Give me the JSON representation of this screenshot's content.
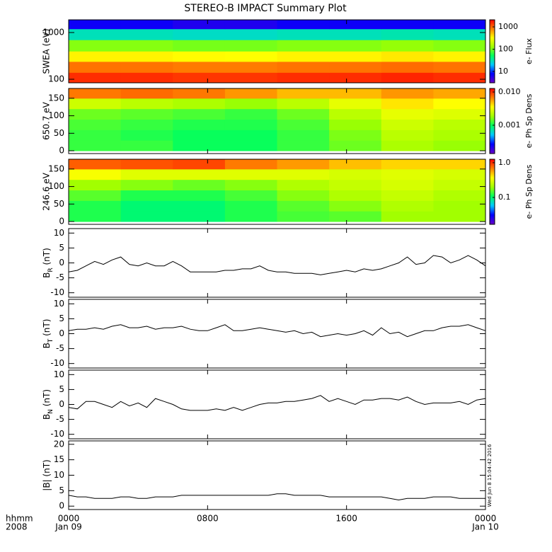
{
  "title": "STEREO-B IMPACT Summary Plot",
  "timestamp": "Wed Jun  8 15:04:42 2016",
  "colormap": [
    "#6a00c8",
    "#0000ff",
    "#00c8ff",
    "#00ff60",
    "#a0ff00",
    "#ffff00",
    "#ff8000",
    "#ff0000"
  ],
  "chart_data": [
    {
      "type": "heatmap",
      "ylabel": "SWEA (eV)",
      "colorbar_label": "e- Flux",
      "log_y": true,
      "xlim": [
        0,
        24
      ],
      "xticks": [
        0,
        8,
        16,
        24
      ],
      "ylim": [
        84,
        1870
      ],
      "yticks": [
        100,
        1000
      ],
      "x_edges": [
        0,
        3,
        6,
        9,
        12,
        15,
        18,
        21,
        24
      ],
      "y_edges": [
        84,
        140,
        240,
        400,
        700,
        1200,
        1870
      ],
      "z": [
        [
          1500,
          1500,
          1400,
          1400,
          1500,
          1500,
          1600,
          1500
        ],
        [
          900,
          900,
          850,
          850,
          900,
          900,
          950,
          900
        ],
        [
          350,
          350,
          330,
          320,
          350,
          350,
          380,
          350
        ],
        [
          110,
          110,
          100,
          100,
          110,
          110,
          120,
          110
        ],
        [
          30,
          30,
          28,
          28,
          30,
          30,
          32,
          30
        ],
        [
          7,
          7,
          6,
          6,
          7,
          7,
          7,
          7
        ]
      ],
      "clim": [
        3.1,
        2080
      ],
      "cticks": [
        10,
        100,
        1000
      ]
    },
    {
      "type": "heatmap",
      "ylabel": "650.7 eV",
      "colorbar_label": "e- Ph Sp Dens",
      "log_y": false,
      "xlim": [
        0,
        24
      ],
      "xticks": [
        0,
        8,
        16,
        24
      ],
      "ylim": [
        -8,
        178
      ],
      "yticks": [
        0,
        50,
        100,
        150
      ],
      "x_edges": [
        0,
        3,
        6,
        9,
        12,
        15,
        18,
        21,
        24
      ],
      "y_edges": [
        0,
        30,
        60,
        90,
        120,
        150,
        180
      ],
      "z": [
        [
          0.0012,
          0.0012,
          0.001,
          0.001,
          0.0012,
          0.0015,
          0.002,
          0.0018
        ],
        [
          0.0012,
          0.0011,
          0.001,
          0.001,
          0.0012,
          0.0016,
          0.0022,
          0.002
        ],
        [
          0.0013,
          0.0012,
          0.0011,
          0.0011,
          0.0013,
          0.0018,
          0.0025,
          0.0022
        ],
        [
          0.0015,
          0.0014,
          0.0013,
          0.0012,
          0.0015,
          0.0022,
          0.003,
          0.0028
        ],
        [
          0.0025,
          0.0022,
          0.002,
          0.0018,
          0.0022,
          0.003,
          0.004,
          0.0035
        ],
        [
          0.007,
          0.0075,
          0.007,
          0.006,
          0.005,
          0.005,
          0.006,
          0.0055
        ]
      ],
      "clim": [
        0.00014,
        0.0128
      ],
      "cticks": [
        0.001,
        {
          "value": 0.01,
          "label": "0.010"
        }
      ]
    },
    {
      "type": "heatmap",
      "ylabel": "246.6 eV",
      "colorbar_label": "e- Ph Sp Dens",
      "log_y": false,
      "xlim": [
        0,
        24
      ],
      "xticks": [
        0,
        8,
        16,
        24
      ],
      "ylim": [
        -8,
        178
      ],
      "yticks": [
        0,
        50,
        100,
        150
      ],
      "x_edges": [
        0,
        3,
        6,
        9,
        12,
        15,
        18,
        21,
        24
      ],
      "y_edges": [
        0,
        30,
        60,
        90,
        120,
        150,
        180
      ],
      "z": [
        [
          0.12,
          0.1,
          0.1,
          0.12,
          0.14,
          0.15,
          0.2,
          0.2
        ],
        [
          0.12,
          0.1,
          0.1,
          0.12,
          0.15,
          0.18,
          0.22,
          0.2
        ],
        [
          0.15,
          0.12,
          0.12,
          0.14,
          0.18,
          0.22,
          0.25,
          0.22
        ],
        [
          0.2,
          0.18,
          0.16,
          0.18,
          0.22,
          0.25,
          0.28,
          0.25
        ],
        [
          0.35,
          0.3,
          0.3,
          0.3,
          0.3,
          0.28,
          0.3,
          0.28
        ],
        [
          0.8,
          0.85,
          0.9,
          0.7,
          0.6,
          0.5,
          0.45,
          0.45
        ]
      ],
      "clim": [
        0.0168,
        1.26
      ],
      "cticks": [
        0.1,
        {
          "value": 1,
          "label": "1.0"
        }
      ]
    },
    {
      "type": "line",
      "ylabel": {
        "base": "B",
        "sub": "R",
        "unit": " (nT)"
      },
      "color": "#000000",
      "xlim": [
        0,
        24
      ],
      "xticks": [
        0,
        8,
        16,
        24
      ],
      "ylim": [
        -11.5,
        11.5
      ],
      "yticks": [
        -10,
        -5,
        0,
        5,
        10
      ],
      "x": [
        0,
        0.5,
        1,
        1.5,
        2,
        2.5,
        3,
        3.5,
        4,
        4.5,
        5,
        5.5,
        6,
        6.5,
        7,
        7.5,
        8,
        8.5,
        9,
        9.5,
        10,
        10.5,
        11,
        11.5,
        12,
        12.5,
        13,
        13.5,
        14,
        14.5,
        15,
        15.5,
        16,
        16.5,
        17,
        17.5,
        18,
        18.5,
        19,
        19.5,
        20,
        20.5,
        21,
        21.5,
        22,
        22.5,
        23,
        23.5,
        24
      ],
      "values": [
        -3,
        -2.5,
        -1,
        0.5,
        -0.5,
        1,
        2,
        -0.5,
        -1,
        0,
        -1,
        -1,
        0.5,
        -1,
        -3,
        -3,
        -3,
        -3,
        -2.5,
        -2.5,
        -2,
        -2,
        -1,
        -2.5,
        -3,
        -3,
        -3.5,
        -3.5,
        -3.5,
        -4,
        -3.5,
        -3,
        -2.5,
        -3,
        -2,
        -2.5,
        -2,
        -1,
        0,
        2,
        -0.5,
        0,
        2.5,
        2,
        0,
        1,
        2.5,
        1,
        -1
      ]
    },
    {
      "type": "line",
      "ylabel": {
        "base": "B",
        "sub": "T",
        "unit": " (nT)"
      },
      "color": "#000000",
      "xlim": [
        0,
        24
      ],
      "xticks": [
        0,
        8,
        16,
        24
      ],
      "ylim": [
        -11.5,
        11.5
      ],
      "yticks": [
        -10,
        -5,
        0,
        5,
        10
      ],
      "x": [
        0,
        0.5,
        1,
        1.5,
        2,
        2.5,
        3,
        3.5,
        4,
        4.5,
        5,
        5.5,
        6,
        6.5,
        7,
        7.5,
        8,
        8.5,
        9,
        9.5,
        10,
        10.5,
        11,
        11.5,
        12,
        12.5,
        13,
        13.5,
        14,
        14.5,
        15,
        15.5,
        16,
        16.5,
        17,
        17.5,
        18,
        18.5,
        19,
        19.5,
        20,
        20.5,
        21,
        21.5,
        22,
        22.5,
        23,
        23.5,
        24
      ],
      "values": [
        1,
        1.5,
        1.5,
        2,
        1.5,
        2.5,
        3,
        2,
        2,
        2.5,
        1.5,
        2,
        2,
        2.5,
        1.5,
        1,
        1,
        2,
        3,
        1,
        1,
        1.5,
        2,
        1.5,
        1,
        0.5,
        1,
        0,
        0.5,
        -1,
        -0.5,
        0,
        -0.5,
        0,
        1,
        -0.5,
        2,
        0,
        0.5,
        -1,
        0,
        1,
        1,
        2,
        2.5,
        2.5,
        3,
        2,
        1
      ]
    },
    {
      "type": "line",
      "ylabel": {
        "base": "B",
        "sub": "N",
        "unit": " (nT)"
      },
      "color": "#000000",
      "xlim": [
        0,
        24
      ],
      "xticks": [
        0,
        8,
        16,
        24
      ],
      "ylim": [
        -11.5,
        11.5
      ],
      "yticks": [
        -10,
        -5,
        0,
        5,
        10
      ],
      "x": [
        0,
        0.5,
        1,
        1.5,
        2,
        2.5,
        3,
        3.5,
        4,
        4.5,
        5,
        5.5,
        6,
        6.5,
        7,
        7.5,
        8,
        8.5,
        9,
        9.5,
        10,
        10.5,
        11,
        11.5,
        12,
        12.5,
        13,
        13.5,
        14,
        14.5,
        15,
        15.5,
        16,
        16.5,
        17,
        17.5,
        18,
        18.5,
        19,
        19.5,
        20,
        20.5,
        21,
        21.5,
        22,
        22.5,
        23,
        23.5,
        24
      ],
      "values": [
        -1,
        -1.5,
        1,
        1,
        0,
        -1,
        1,
        -0.5,
        0.5,
        -1,
        2,
        1,
        0,
        -1.5,
        -2,
        -2,
        -2,
        -1.5,
        -2,
        -1,
        -2,
        -1,
        0,
        0.5,
        0.5,
        1,
        1,
        1.5,
        2,
        3,
        1,
        2,
        1,
        0,
        1.5,
        1.5,
        2,
        2,
        1.5,
        2.5,
        1,
        0,
        0.5,
        0.5,
        0.5,
        1,
        0,
        1.5,
        2
      ]
    },
    {
      "type": "line",
      "ylabel": {
        "base": "|B|",
        "unit": " (nT)"
      },
      "color": "#000000",
      "xlim": [
        0,
        24
      ],
      "xticks": [
        {
          "value": 0,
          "label": "0000"
        },
        {
          "value": 8,
          "label": "0800"
        },
        {
          "value": 16,
          "label": "1600"
        },
        {
          "value": 24,
          "label": "0000"
        }
      ],
      "xtick_dates": [
        "Jan 09",
        null,
        null,
        "Jan 10"
      ],
      "xlabel": [
        "hhmm",
        "2008"
      ],
      "ylim": [
        -1.1,
        21.1
      ],
      "yticks": [
        0,
        5,
        10,
        15,
        20
      ],
      "x": [
        0,
        0.5,
        1,
        1.5,
        2,
        2.5,
        3,
        3.5,
        4,
        4.5,
        5,
        5.5,
        6,
        6.5,
        7,
        7.5,
        8,
        8.5,
        9,
        9.5,
        10,
        10.5,
        11,
        11.5,
        12,
        12.5,
        13,
        13.5,
        14,
        14.5,
        15,
        15.5,
        16,
        16.5,
        17,
        17.5,
        18,
        18.5,
        19,
        19.5,
        20,
        20.5,
        21,
        21.5,
        22,
        22.5,
        23,
        23.5,
        24
      ],
      "values": [
        3.5,
        3,
        3,
        2.5,
        2.5,
        2.5,
        3,
        3,
        2.5,
        2.5,
        3,
        3,
        3,
        3.5,
        3.5,
        3.5,
        3.5,
        3.5,
        3.5,
        3.5,
        3.5,
        3.5,
        3.5,
        3.5,
        4,
        4,
        3.5,
        3.5,
        3.5,
        3.5,
        3,
        3,
        3,
        3,
        3,
        3,
        3,
        2.5,
        2,
        2.5,
        2.5,
        2.5,
        3,
        3,
        3,
        2.5,
        2.5,
        2.5,
        2.5
      ]
    }
  ]
}
